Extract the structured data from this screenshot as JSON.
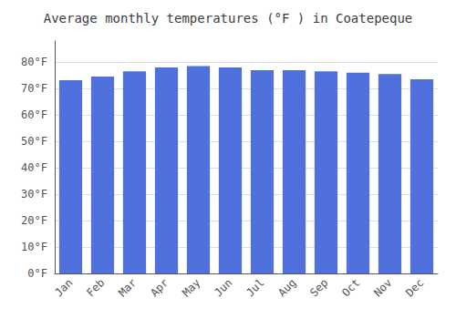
{
  "chart_data": {
    "type": "bar",
    "title": "Average monthly temperatures (°F ) in Coatepeque",
    "categories": [
      "Jan",
      "Feb",
      "Mar",
      "Apr",
      "May",
      "Jun",
      "Jul",
      "Aug",
      "Sep",
      "Oct",
      "Nov",
      "Dec"
    ],
    "values": [
      73.2,
      74.5,
      76.5,
      78.0,
      78.5,
      78.0,
      77.0,
      77.0,
      76.5,
      76.0,
      75.5,
      73.5
    ],
    "ylim": [
      0,
      88
    ],
    "yticks": [
      {
        "value": 0,
        "label": "0°F"
      },
      {
        "value": 10,
        "label": "10°F"
      },
      {
        "value": 20,
        "label": "20°F"
      },
      {
        "value": 30,
        "label": "30°F"
      },
      {
        "value": 40,
        "label": "40°F"
      },
      {
        "value": 50,
        "label": "50°F"
      },
      {
        "value": 60,
        "label": "60°F"
      },
      {
        "value": 70,
        "label": "70°F"
      },
      {
        "value": 80,
        "label": "80°F"
      }
    ],
    "grid": true
  }
}
